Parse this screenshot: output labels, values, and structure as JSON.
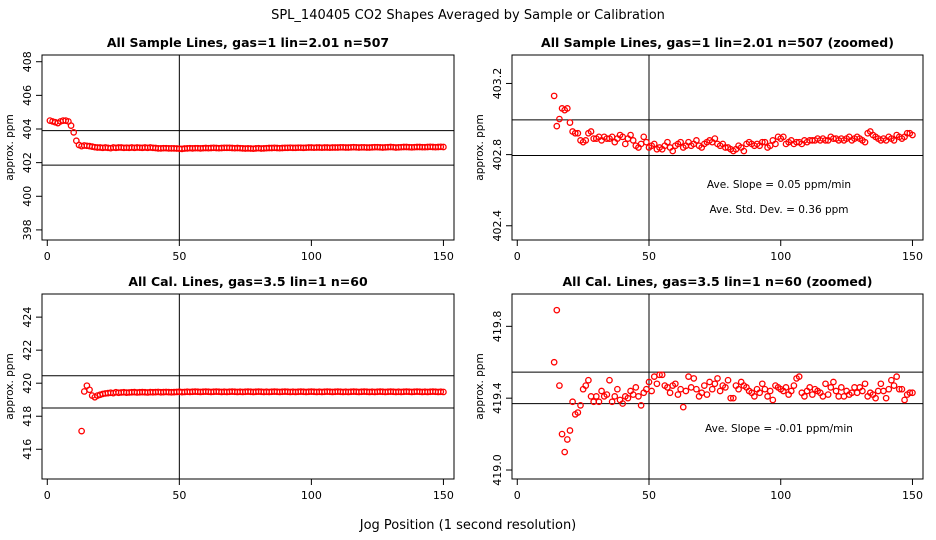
{
  "figure": {
    "main_title": "SPL_140405  CO2 Shapes Averaged by Sample or Calibration",
    "xlabel": "Jog Position (1 second resolution)"
  },
  "chart_data": [
    {
      "type": "scatter",
      "title": "All Sample Lines, gas=1 lin=2.01 n=507",
      "ylabel": "approx. ppm",
      "xlim": [
        -2,
        154
      ],
      "ylim": [
        397.4,
        408.4
      ],
      "xticks": [
        0,
        50,
        100,
        150
      ],
      "yticks": [
        398,
        400,
        402,
        404,
        406,
        408
      ],
      "vline": 50,
      "hlines": [
        403.9,
        401.85
      ],
      "annotations": [],
      "series": [
        {
          "color": "#ff0000",
          "x_start": 1,
          "x_end": 150,
          "values": [
            404.5,
            404.45,
            404.4,
            404.35,
            404.45,
            404.5,
            404.5,
            404.45,
            404.2,
            403.8,
            403.3,
            403.05,
            402.98,
            403.02,
            403.0,
            402.98,
            402.95,
            402.92,
            402.9,
            402.9,
            402.88,
            402.9,
            402.88,
            402.86,
            402.9,
            402.88,
            402.9,
            402.9,
            402.88,
            402.89,
            402.88,
            402.9,
            402.88,
            402.9,
            402.89,
            402.88,
            402.9,
            402.88,
            402.9,
            402.88,
            402.87,
            402.85,
            402.85,
            402.86,
            402.86,
            402.85,
            402.85,
            402.85,
            402.84,
            402.83,
            402.82,
            402.84,
            402.85,
            402.86,
            402.85,
            402.86,
            402.86,
            402.85,
            402.86,
            402.87,
            402.86,
            402.87,
            402.88,
            402.87,
            402.86,
            402.87,
            402.88,
            402.88,
            402.88,
            402.87,
            402.86,
            402.87,
            402.86,
            402.85,
            402.84,
            402.85,
            402.84,
            402.83,
            402.85,
            402.86,
            402.84,
            402.85,
            402.86,
            402.87,
            402.87,
            402.88,
            402.87,
            402.86,
            402.87,
            402.88,
            402.88,
            402.89,
            402.88,
            402.88,
            402.89,
            402.89,
            402.88,
            402.89,
            402.9,
            402.9,
            402.89,
            402.9,
            402.9,
            402.89,
            402.9,
            402.9,
            402.89,
            402.9,
            402.9,
            402.9,
            402.91,
            402.91,
            402.9,
            402.9,
            402.91,
            402.92,
            402.91,
            402.9,
            402.91,
            402.91,
            402.9,
            402.9,
            402.91,
            402.92,
            402.92,
            402.91,
            402.9,
            402.91,
            402.92,
            402.93,
            402.92,
            402.9,
            402.91,
            402.92,
            402.93,
            402.93,
            402.92,
            402.91,
            402.92,
            402.93,
            402.93,
            402.92,
            402.92,
            402.93,
            402.94,
            402.93,
            402.92,
            402.93,
            402.94,
            402.93
          ]
        }
      ]
    },
    {
      "type": "scatter",
      "title": "All Sample Lines, gas=1 lin=2.01 n=507 (zoomed)",
      "ylabel": "approx. ppm",
      "xlim": [
        -2,
        154
      ],
      "ylim": [
        402.32,
        403.36
      ],
      "xticks": [
        0,
        50,
        100,
        150
      ],
      "yticks": [
        402.4,
        402.8,
        403.2
      ],
      "vline": 50,
      "hlines": [
        402.995,
        402.795
      ],
      "annotations": [
        "Ave. Slope =  0.05  ppm/min",
        "Ave. Std. Dev. =  0.36  ppm"
      ],
      "series": [
        {
          "color": "#ff0000",
          "x_start": 14,
          "x_end": 150,
          "values": [
            403.13,
            402.96,
            403.0,
            403.06,
            403.05,
            403.06,
            402.98,
            402.93,
            402.92,
            402.92,
            402.88,
            402.87,
            402.88,
            402.92,
            402.93,
            402.89,
            402.89,
            402.9,
            402.88,
            402.9,
            402.89,
            402.89,
            402.9,
            402.87,
            402.89,
            402.91,
            402.9,
            402.86,
            402.89,
            402.91,
            402.88,
            402.85,
            402.84,
            402.86,
            402.9,
            402.87,
            402.84,
            402.85,
            402.86,
            402.83,
            402.84,
            402.83,
            402.85,
            402.87,
            402.84,
            402.82,
            402.85,
            402.86,
            402.87,
            402.84,
            402.85,
            402.87,
            402.85,
            402.86,
            402.88,
            402.85,
            402.84,
            402.86,
            402.87,
            402.88,
            402.87,
            402.89,
            402.86,
            402.85,
            402.86,
            402.84,
            402.84,
            402.83,
            402.82,
            402.83,
            402.85,
            402.84,
            402.82,
            402.86,
            402.87,
            402.86,
            402.85,
            402.86,
            402.85,
            402.87,
            402.87,
            402.84,
            402.85,
            402.88,
            402.86,
            402.9,
            402.89,
            402.9,
            402.86,
            402.87,
            402.88,
            402.86,
            402.87,
            402.87,
            402.86,
            402.88,
            402.87,
            402.88,
            402.88,
            402.88,
            402.89,
            402.88,
            402.89,
            402.88,
            402.88,
            402.9,
            402.89,
            402.89,
            402.88,
            402.89,
            402.88,
            402.89,
            402.9,
            402.88,
            402.89,
            402.9,
            402.89,
            402.88,
            402.87,
            402.92,
            402.93,
            402.91,
            402.9,
            402.89,
            402.88,
            402.89,
            402.88,
            402.9,
            402.89,
            402.88,
            402.91,
            402.9,
            402.89,
            402.9,
            402.92,
            402.92,
            402.91
          ]
        }
      ]
    },
    {
      "type": "scatter",
      "title": "All Cal. Lines, gas=3.5 lin=1 n=60",
      "ylabel": "approx. ppm",
      "xlim": [
        -2,
        154
      ],
      "ylim": [
        414.2,
        425.4
      ],
      "xticks": [
        0,
        50,
        100,
        150
      ],
      "yticks": [
        416,
        418,
        420,
        422,
        424
      ],
      "vline": 50,
      "hlines": [
        420.45,
        418.5
      ],
      "annotations": [],
      "series": [
        {
          "color": "#ff0000",
          "x_start": 13,
          "x_end": 150,
          "values": [
            417.1,
            419.5,
            419.85,
            419.6,
            419.25,
            419.15,
            419.25,
            419.3,
            419.35,
            419.38,
            419.4,
            419.42,
            419.4,
            419.45,
            419.42,
            419.44,
            419.45,
            419.43,
            419.44,
            419.45,
            419.46,
            419.44,
            419.45,
            419.46,
            419.45,
            419.44,
            419.46,
            419.45,
            419.46,
            419.47,
            419.45,
            419.46,
            419.47,
            419.46,
            419.45,
            419.46,
            419.47,
            419.48,
            419.46,
            419.47,
            419.48,
            419.47,
            419.48,
            419.49,
            419.48,
            419.47,
            419.48,
            419.49,
            419.48,
            419.47,
            419.48,
            419.49,
            419.48,
            419.47,
            419.48,
            419.47,
            419.48,
            419.49,
            419.48,
            419.47,
            419.48,
            419.47,
            419.48,
            419.49,
            419.48,
            419.47,
            419.48,
            419.49,
            419.48,
            419.47,
            419.48,
            419.47,
            419.48,
            419.49,
            419.48,
            419.47,
            419.48,
            419.49,
            419.48,
            419.47,
            419.48,
            419.47,
            419.48,
            419.49,
            419.48,
            419.47,
            419.48,
            419.49,
            419.48,
            419.47,
            419.48,
            419.47,
            419.48,
            419.49,
            419.48,
            419.47,
            419.48,
            419.49,
            419.48,
            419.47,
            419.48,
            419.47,
            419.48,
            419.49,
            419.48,
            419.47,
            419.48,
            419.49,
            419.48,
            419.47,
            419.48,
            419.47,
            419.48,
            419.49,
            419.48,
            419.47,
            419.48,
            419.49,
            419.48,
            419.47,
            419.48,
            419.47,
            419.48,
            419.49,
            419.48,
            419.47,
            419.48,
            419.49,
            419.48,
            419.47,
            419.48,
            419.47,
            419.48,
            419.49,
            419.48,
            419.47,
            419.48,
            419.47
          ]
        }
      ]
    },
    {
      "type": "scatter",
      "title": "All Cal. Lines, gas=3.5 lin=1 n=60 (zoomed)",
      "ylabel": "approx. ppm",
      "xlim": [
        -2,
        154
      ],
      "ylim": [
        418.95,
        419.98
      ],
      "xticks": [
        0,
        50,
        100,
        150
      ],
      "yticks": [
        419.0,
        419.4,
        419.8
      ],
      "vline": 50,
      "hlines": [
        419.545,
        419.37
      ],
      "annotations": [
        "Ave. Slope =  -0.01  ppm/min"
      ],
      "series": [
        {
          "color": "#ff0000",
          "x_start": 14,
          "x_end": 150,
          "values": [
            419.6,
            419.89,
            419.47,
            419.2,
            419.1,
            419.17,
            419.22,
            419.38,
            419.31,
            419.32,
            419.36,
            419.45,
            419.47,
            419.5,
            419.41,
            419.38,
            419.41,
            419.38,
            419.44,
            419.41,
            419.42,
            419.5,
            419.38,
            419.41,
            419.45,
            419.39,
            419.37,
            419.41,
            419.4,
            419.44,
            419.42,
            419.46,
            419.41,
            419.36,
            419.43,
            419.45,
            419.49,
            419.44,
            419.52,
            419.48,
            419.53,
            419.53,
            419.47,
            419.46,
            419.43,
            419.47,
            419.48,
            419.42,
            419.45,
            419.35,
            419.44,
            419.52,
            419.46,
            419.51,
            419.45,
            419.41,
            419.43,
            419.47,
            419.42,
            419.49,
            419.45,
            419.48,
            419.51,
            419.44,
            419.47,
            419.46,
            419.5,
            419.4,
            419.4,
            419.47,
            419.45,
            419.49,
            419.47,
            419.46,
            419.44,
            419.43,
            419.41,
            419.45,
            419.43,
            419.48,
            419.45,
            419.41,
            419.44,
            419.39,
            419.47,
            419.46,
            419.45,
            419.44,
            419.46,
            419.42,
            419.44,
            419.47,
            419.51,
            419.52,
            419.43,
            419.41,
            419.44,
            419.46,
            419.42,
            419.45,
            419.44,
            419.43,
            419.41,
            419.48,
            419.42,
            419.46,
            419.49,
            419.44,
            419.41,
            419.46,
            419.41,
            419.44,
            419.42,
            419.43,
            419.46,
            419.43,
            419.46,
            419.44,
            419.48,
            419.41,
            419.43,
            419.42,
            419.4,
            419.44,
            419.48,
            419.44,
            419.4,
            419.45,
            419.5,
            419.47,
            419.52,
            419.45,
            419.45,
            419.39,
            419.42,
            419.43,
            419.43
          ]
        }
      ]
    }
  ]
}
